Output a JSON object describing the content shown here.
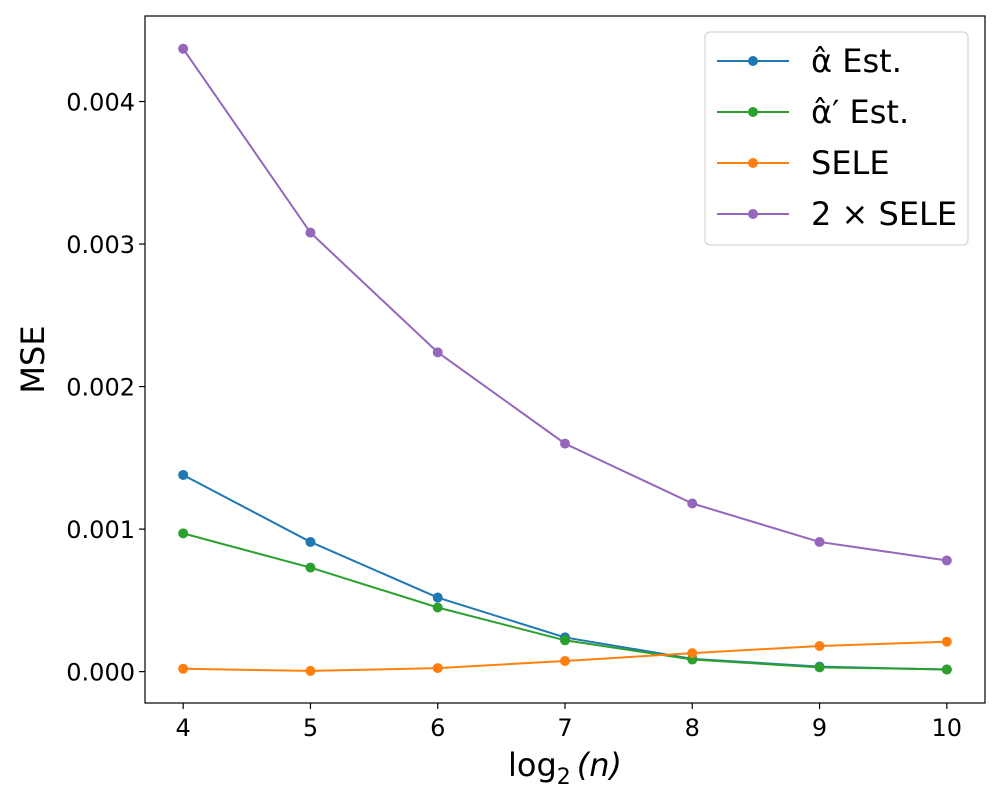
{
  "chart_data": {
    "type": "line",
    "xlabel": "log",
    "xlabel_sub": "2",
    "xlabel_arg": "(n)",
    "ylabel": "MSE",
    "x": [
      4,
      5,
      6,
      7,
      8,
      9,
      10
    ],
    "xlim": [
      3.7,
      10.3
    ],
    "ylim": [
      -0.00022,
      0.0046
    ],
    "xticks": [
      "4",
      "5",
      "6",
      "7",
      "8",
      "9",
      "10"
    ],
    "yticks": [
      {
        "value": 0.0,
        "label": "0.000"
      },
      {
        "value": 0.001,
        "label": "0.001"
      },
      {
        "value": 0.002,
        "label": "0.002"
      },
      {
        "value": 0.003,
        "label": "0.003"
      },
      {
        "value": 0.004,
        "label": "0.004"
      }
    ],
    "grid": false,
    "legend_position": "top-right",
    "series": [
      {
        "name": "α̂ Est.",
        "color": "#1f77b4",
        "values": [
          0.00138,
          0.00091,
          0.00052,
          0.00024,
          9e-05,
          3.5e-05,
          1.5e-05
        ]
      },
      {
        "name": "α̂′ Est.",
        "color": "#2ca02c",
        "values": [
          0.00097,
          0.00073,
          0.00045,
          0.00022,
          8.5e-05,
          3e-05,
          1.5e-05
        ]
      },
      {
        "name": "SELE",
        "color": "#ff7f0e",
        "values": [
          2e-05,
          5e-06,
          2.5e-05,
          7.5e-05,
          0.00013,
          0.00018,
          0.00021
        ]
      },
      {
        "name": "2 × SELE",
        "color": "#9467bd",
        "values": [
          0.00437,
          0.00308,
          0.00224,
          0.0016,
          0.00118,
          0.00091,
          0.00078
        ]
      }
    ]
  }
}
